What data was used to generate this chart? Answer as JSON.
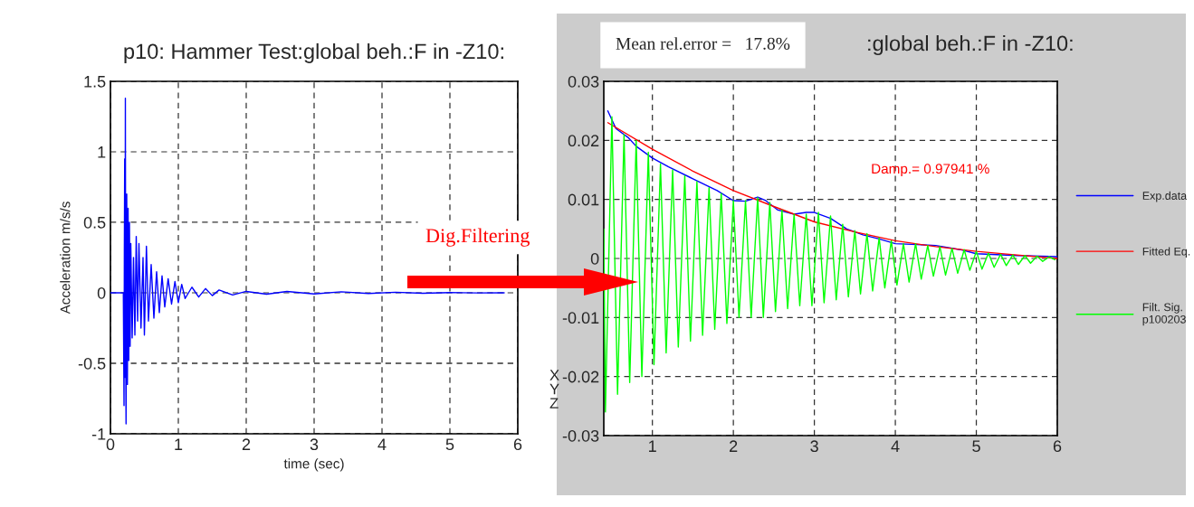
{
  "chart_data": [
    {
      "type": "line",
      "title": "p10: Hammer Test:global beh.:F in -Z10:",
      "xlabel": "time (sec)",
      "ylabel": "Acceleration m/s/s",
      "xlim": [
        0,
        6
      ],
      "xticks": [
        0,
        1,
        2,
        3,
        4,
        5,
        6
      ],
      "ylim": [
        -1,
        1.5
      ],
      "yticks": [
        -1,
        -0.5,
        0,
        0.5,
        1,
        1.5
      ],
      "grid": true,
      "line_style": "solid",
      "series": [
        {
          "color": "#0000ff",
          "x": [
            0,
            0.19,
            0.2,
            0.205,
            0.21,
            0.215,
            0.22,
            0.225,
            0.23,
            0.24,
            0.25,
            0.26,
            0.27,
            0.28,
            0.29,
            0.3,
            0.32,
            0.34,
            0.36,
            0.38,
            0.4,
            0.42,
            0.45,
            0.48,
            0.5,
            0.53,
            0.56,
            0.6,
            0.64,
            0.68,
            0.72,
            0.76,
            0.8,
            0.85,
            0.9,
            0.95,
            1.0,
            1.05,
            1.1,
            1.2,
            1.3,
            1.4,
            1.5,
            1.6,
            1.8,
            2.0,
            2.3,
            2.6,
            3.0,
            3.4,
            3.8,
            4.2,
            4.6,
            5.0,
            5.4,
            5.8
          ],
          "values": [
            0,
            0,
            -0.8,
            0.3,
            0.95,
            -0.6,
            1.38,
            -0.4,
            -0.93,
            0.7,
            -0.65,
            0.6,
            -0.48,
            0.5,
            -0.38,
            0.35,
            -0.32,
            0.25,
            -0.3,
            0.4,
            -0.2,
            0.35,
            -0.25,
            0.25,
            -0.3,
            0.33,
            -0.2,
            0.2,
            -0.18,
            0.15,
            -0.14,
            0.12,
            -0.1,
            0.1,
            -0.08,
            0.08,
            -0.07,
            0.06,
            -0.04,
            0.04,
            -0.03,
            0.03,
            -0.02,
            0.02,
            -0.015,
            0.01,
            -0.01,
            0.01,
            -0.008,
            0.007,
            -0.005,
            0.004,
            -0.003,
            0.002,
            -0.001,
            0
          ]
        }
      ],
      "annotations": [
        "Dig.Filtering",
        "X\nY\nZ"
      ]
    },
    {
      "type": "line",
      "title": ":global beh.:F in -Z10:",
      "xlim": [
        0.4,
        6
      ],
      "xticks": [
        1,
        2,
        3,
        4,
        5,
        6
      ],
      "ylim": [
        -0.03,
        0.03
      ],
      "yticks": [
        -0.03,
        -0.02,
        -0.01,
        0,
        0.01,
        0.02,
        0.03
      ],
      "grid": true,
      "legend": "right",
      "line_style": "solid",
      "series": [
        {
          "name": "Exp.data",
          "color": "#0000ff",
          "x": [
            0.45,
            0.55,
            0.7,
            0.8,
            1.0,
            1.2,
            1.5,
            1.8,
            2.0,
            2.15,
            2.3,
            2.4,
            2.55,
            2.75,
            2.9,
            3.0,
            3.2,
            3.4,
            3.6,
            3.8,
            4.0,
            4.2,
            4.5,
            4.8,
            5.0,
            5.5,
            5.8,
            6.0
          ],
          "values": [
            0.025,
            0.022,
            0.0205,
            0.019,
            0.017,
            0.0155,
            0.0135,
            0.0115,
            0.0098,
            0.0097,
            0.0104,
            0.0098,
            0.0082,
            0.0075,
            0.0078,
            0.0078,
            0.0068,
            0.005,
            0.004,
            0.0033,
            0.0025,
            0.0024,
            0.0022,
            0.0015,
            0.0008,
            0.0005,
            0.0004,
            0.0003
          ]
        },
        {
          "name": "Fitted Eq.",
          "color": "#ff0000",
          "x": [
            0.45,
            1.0,
            1.5,
            2.0,
            2.5,
            3.0,
            3.5,
            4.0,
            4.5,
            5.0,
            5.5,
            6.0
          ],
          "values": [
            0.023,
            0.0185,
            0.0148,
            0.0115,
            0.0088,
            0.0062,
            0.0045,
            0.003,
            0.002,
            0.0012,
            0.0006,
            0.0
          ]
        },
        {
          "name": "Filt. Sig.\np100203",
          "color": "#00ff00",
          "x": [
            0.4,
            0.42,
            0.5,
            0.57,
            0.65,
            0.72,
            0.8,
            0.87,
            0.95,
            1.02,
            1.1,
            1.17,
            1.25,
            1.32,
            1.4,
            1.47,
            1.55,
            1.62,
            1.7,
            1.77,
            1.85,
            1.92,
            2.0,
            2.07,
            2.15,
            2.22,
            2.3,
            2.37,
            2.45,
            2.52,
            2.6,
            2.67,
            2.75,
            2.82,
            2.9,
            2.97,
            3.05,
            3.12,
            3.2,
            3.27,
            3.35,
            3.42,
            3.5,
            3.57,
            3.65,
            3.72,
            3.8,
            3.87,
            3.95,
            4.02,
            4.1,
            4.17,
            4.25,
            4.32,
            4.4,
            4.47,
            4.55,
            4.62,
            4.7,
            4.77,
            4.85,
            4.92,
            5.0,
            5.07,
            5.15,
            5.22,
            5.3,
            5.37,
            5.45,
            5.52,
            5.6,
            5.67,
            5.75,
            5.82,
            5.9,
            5.97
          ],
          "values": [
            0.005,
            -0.026,
            0.024,
            -0.023,
            0.021,
            -0.021,
            0.02,
            -0.02,
            0.018,
            -0.018,
            0.016,
            -0.016,
            0.015,
            -0.015,
            0.014,
            -0.014,
            0.013,
            -0.013,
            0.012,
            -0.012,
            0.011,
            -0.011,
            0.0098,
            -0.01,
            0.0098,
            -0.01,
            0.0103,
            -0.01,
            0.0095,
            -0.009,
            0.0082,
            -0.0085,
            0.0075,
            -0.008,
            0.0075,
            -0.008,
            0.0078,
            -0.0075,
            0.0072,
            -0.007,
            0.0058,
            -0.0065,
            0.0047,
            -0.006,
            0.0042,
            -0.0055,
            0.0035,
            -0.005,
            0.003,
            -0.0045,
            0.0025,
            -0.004,
            0.0025,
            -0.0035,
            0.0022,
            -0.003,
            0.002,
            -0.0028,
            0.0017,
            -0.0025,
            0.0015,
            -0.002,
            0.0012,
            -0.0018,
            0.0009,
            -0.0015,
            0.0007,
            -0.0012,
            0.0006,
            -0.001,
            0.0005,
            -0.0008,
            0.0004,
            -0.0005,
            0.0003,
            -0.0002
          ]
        }
      ],
      "annotations": [
        "Mean rel.error =   17.8%",
        "Damp.= 0.97941 %"
      ]
    }
  ]
}
